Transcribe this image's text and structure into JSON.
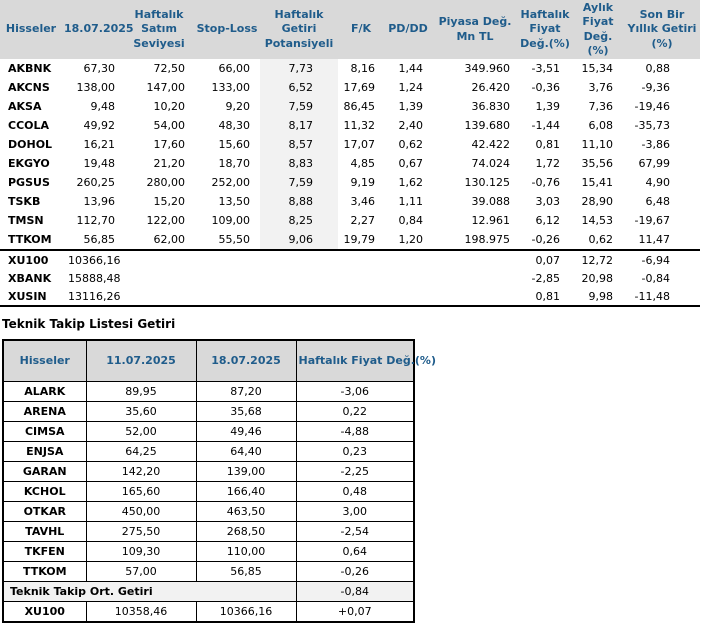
{
  "colors": {
    "header_bg": "#d9d9d9",
    "header_text": "#1f5c8b",
    "highlight_column_bg": "#f2f2f2",
    "summary_row_bg": "#f2f2f2",
    "body_text": "#000000"
  },
  "table1": {
    "headers": [
      "Hisseler",
      "18.07.2025",
      "Haftalık Satım Seviyesi",
      "Stop-Loss",
      "Haftalık Getiri Potansiyeli",
      "F/K",
      "PD/DD",
      "Piyasa Değ. Mn TL",
      "Haftalık Fiyat Değ.(%)",
      "Aylık Fiyat Değ.(%)",
      "Son Bir Yıllık Getiri (%)"
    ],
    "rows": [
      [
        "AKBNK",
        "67,30",
        "72,50",
        "66,00",
        "7,73",
        "8,16",
        "1,44",
        "349.960",
        "-3,51",
        "15,34",
        "0,88"
      ],
      [
        "AKCNS",
        "138,00",
        "147,00",
        "133,00",
        "6,52",
        "17,69",
        "1,24",
        "26.420",
        "-0,36",
        "3,76",
        "-9,36"
      ],
      [
        "AKSA",
        "9,48",
        "10,20",
        "9,20",
        "7,59",
        "86,45",
        "1,39",
        "36.830",
        "1,39",
        "7,36",
        "-19,46"
      ],
      [
        "CCOLA",
        "49,92",
        "54,00",
        "48,30",
        "8,17",
        "11,32",
        "2,40",
        "139.680",
        "-1,44",
        "6,08",
        "-35,73"
      ],
      [
        "DOHOL",
        "16,21",
        "17,60",
        "15,60",
        "8,57",
        "17,07",
        "0,62",
        "42.422",
        "0,81",
        "11,10",
        "-3,86"
      ],
      [
        "EKGYO",
        "19,48",
        "21,20",
        "18,70",
        "8,83",
        "4,85",
        "0,67",
        "74.024",
        "1,72",
        "35,56",
        "67,99"
      ],
      [
        "PGSUS",
        "260,25",
        "280,00",
        "252,00",
        "7,59",
        "9,19",
        "1,62",
        "130.125",
        "-0,76",
        "15,41",
        "4,90"
      ],
      [
        "TSKB",
        "13,96",
        "15,20",
        "13,50",
        "8,88",
        "3,46",
        "1,11",
        "39.088",
        "3,03",
        "28,90",
        "6,48"
      ],
      [
        "TMSN",
        "112,70",
        "122,00",
        "109,00",
        "8,25",
        "2,27",
        "0,84",
        "12.961",
        "6,12",
        "14,53",
        "-19,67"
      ],
      [
        "TTKOM",
        "56,85",
        "62,00",
        "55,50",
        "9,06",
        "19,79",
        "1,20",
        "198.975",
        "-0,26",
        "0,62",
        "11,47"
      ]
    ],
    "index_rows": [
      {
        "name": "XU100",
        "value": "10366,16",
        "weekly": "0,07",
        "monthly": "12,72",
        "yearly": "-6,94"
      },
      {
        "name": "XBANK",
        "value": "15888,48",
        "weekly": "-2,85",
        "monthly": "20,98",
        "yearly": "-0,84"
      },
      {
        "name": "XUSIN",
        "value": "13116,26",
        "weekly": "0,81",
        "monthly": "9,98",
        "yearly": "-11,48"
      }
    ]
  },
  "section_title": "Teknik Takip Listesi Getiri",
  "table2": {
    "headers": [
      "Hisseler",
      "11.07.2025",
      "18.07.2025",
      "Haftalık Fiyat Değ.(%)"
    ],
    "rows": [
      [
        "ALARK",
        "89,95",
        "87,20",
        "-3,06"
      ],
      [
        "ARENA",
        "35,60",
        "35,68",
        "0,22"
      ],
      [
        "CIMSA",
        "52,00",
        "49,46",
        "-4,88"
      ],
      [
        "ENJSA",
        "64,25",
        "64,40",
        "0,23"
      ],
      [
        "GARAN",
        "142,20",
        "139,00",
        "-2,25"
      ],
      [
        "KCHOL",
        "165,60",
        "166,40",
        "0,48"
      ],
      [
        "OTKAR",
        "450,00",
        "463,50",
        "3,00"
      ],
      [
        "TAVHL",
        "275,50",
        "268,50",
        "-2,54"
      ],
      [
        "TKFEN",
        "109,30",
        "110,00",
        "0,64"
      ],
      [
        "TTKOM",
        "57,00",
        "56,85",
        "-0,26"
      ]
    ],
    "summary": {
      "label": "Teknik Takip Ort. Getiri",
      "value": "-0,84"
    },
    "index_row": [
      "XU100",
      "10358,46",
      "10366,16",
      "+0,07"
    ]
  }
}
